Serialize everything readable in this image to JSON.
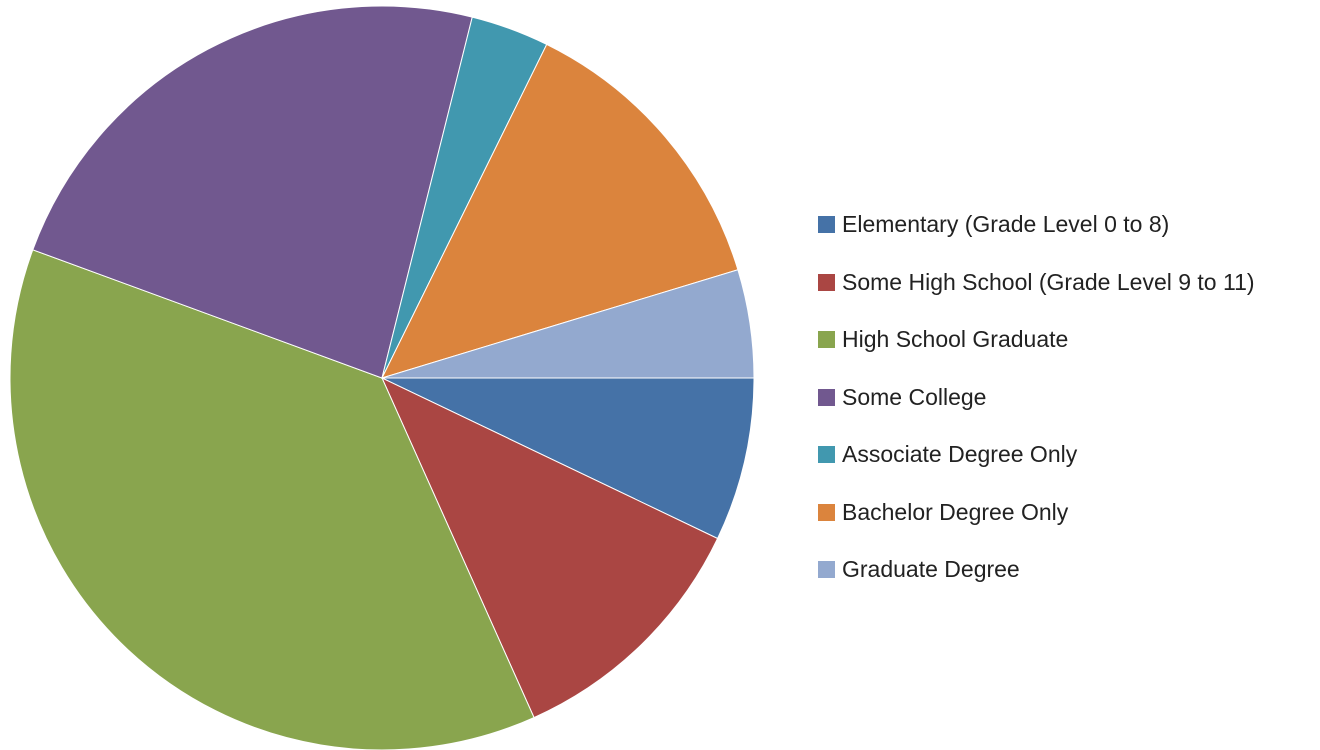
{
  "chart_data": {
    "type": "pie",
    "start_angle_deg": 0,
    "direction": "clockwise",
    "slices": [
      {
        "label": "Elementary (Grade  Level 0 to 8)",
        "value": 7.1,
        "color": "#4572a7"
      },
      {
        "label": "Some High School (Grade Level 9 to 11)",
        "value": 11.2,
        "color": "#aa4643"
      },
      {
        "label": "High School Graduate",
        "value": 37.3,
        "color": "#89a54e"
      },
      {
        "label": "Some College",
        "value": 23.3,
        "color": "#71588f"
      },
      {
        "label": "Associate Degree Only",
        "value": 3.4,
        "color": "#4198af"
      },
      {
        "label": "Bachelor Degree Only",
        "value": 13.0,
        "color": "#db843d"
      },
      {
        "label": "Graduate Degree",
        "value": 4.7,
        "color": "#93a9cf"
      }
    ],
    "legend_position": "right"
  }
}
